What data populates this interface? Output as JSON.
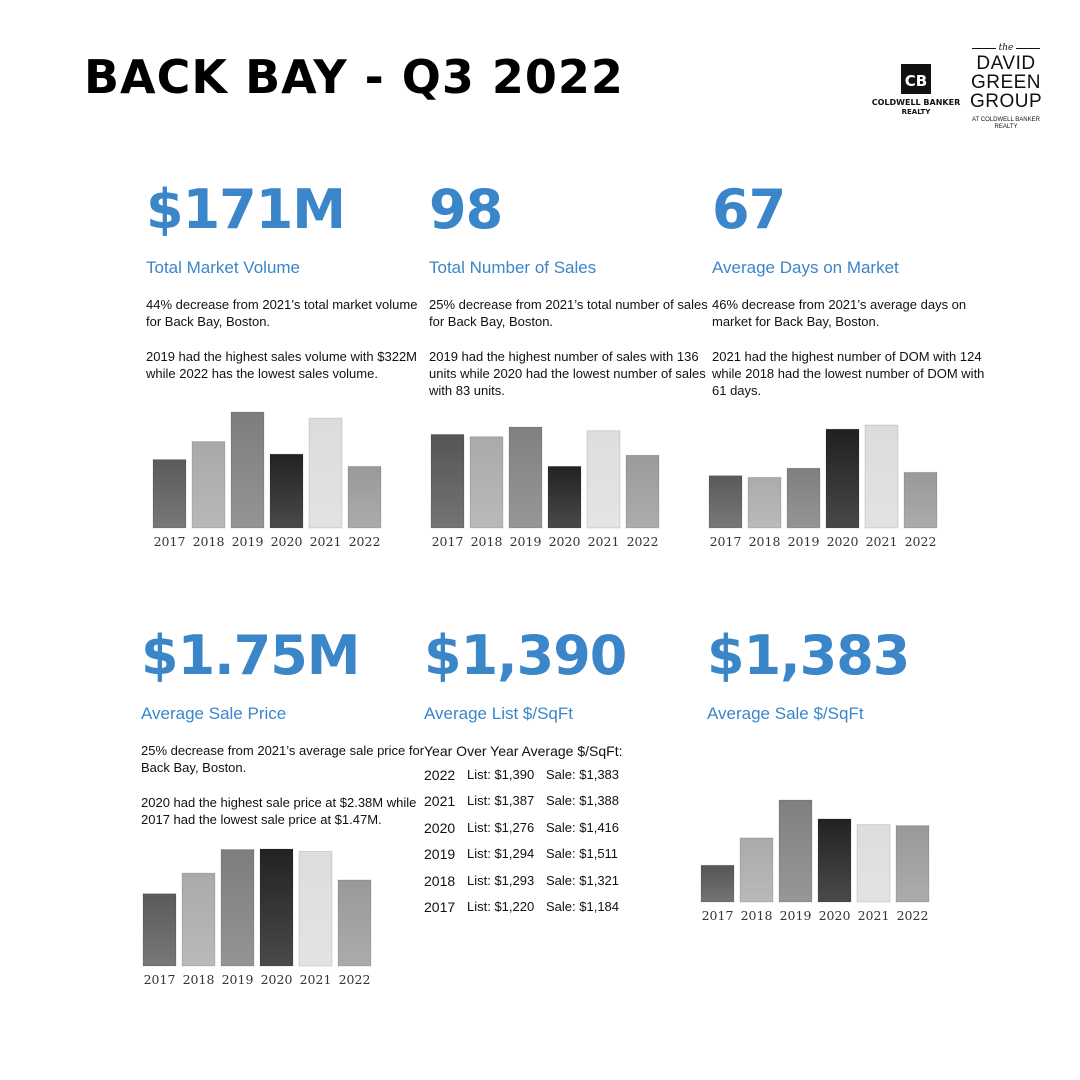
{
  "header": {
    "title": "BACK BAY - Q3 2022",
    "cb_logo": {
      "mark": "CB",
      "name": "COLDWELL BANKER",
      "sub": "REALTY"
    },
    "dg_logo": {
      "the": "the",
      "line1": "DAVID",
      "line2": "GREEN",
      "line3": "GROUP",
      "at1": "AT COLDWELL BANKER",
      "at2": "REALTY"
    }
  },
  "colors": {
    "accent": "#3a86c8",
    "text": "#111111"
  },
  "stats": {
    "volume": {
      "value": "$171M",
      "label": "Total Market Volume",
      "desc1": "44% decrease from 2021’s total market volume for Back Bay, Boston.",
      "desc2": "2019 had the highest sales volume with $322M while 2022 has the lowest sales volume."
    },
    "sales": {
      "value": "98",
      "label": "Total Number of Sales",
      "desc1": "25% decrease from 2021’s total number of sales for Back Bay, Boston.",
      "desc2": "2019 had the highest number of sales with 136 units while 2020 had the lowest number of sales with 83 units."
    },
    "dom": {
      "value": "67",
      "label": "Average Days on Market",
      "desc1": "46% decrease from 2021’s average days on market for Back Bay, Boston.",
      "desc2": "2021 had the highest number of DOM with 124 while 2018 had the lowest number of DOM with 61 days."
    },
    "price": {
      "value": "$1.75M",
      "label": "Average Sale Price",
      "desc1": "25% decrease from 2021’s average sale price for Back Bay, Boston.",
      "desc2": "2020 had the highest sale price at $2.38M while 2017 had the lowest sale price at $1.47M."
    },
    "list_sqft": {
      "value": "$1,390",
      "label": "Average List $/SqFt"
    },
    "sale_sqft": {
      "value": "$1,383",
      "label": "Average Sale $/SqFt"
    }
  },
  "yoy": {
    "title": "Year Over Year Average $/SqFt:",
    "rows": [
      {
        "year": "2022",
        "list": "List: $1,390",
        "sale": "Sale: $1,383"
      },
      {
        "year": "2021",
        "list": "List: $1,387",
        "sale": "Sale: $1,388"
      },
      {
        "year": "2020",
        "list": "List: $1,276",
        "sale": "Sale: $1,416"
      },
      {
        "year": "2019",
        "list": "List: $1,294",
        "sale": "Sale: $1,511"
      },
      {
        "year": "2018",
        "list": "List: $1,293",
        "sale": "Sale: $1,321"
      },
      {
        "year": "2017",
        "list": "List: $1,220",
        "sale": "Sale: $1,184"
      }
    ]
  },
  "chart_data": [
    {
      "type": "bar",
      "categories": [
        "2017",
        "2018",
        "2019",
        "2020",
        "2021",
        "2022"
      ],
      "values": [
        190,
        240,
        322,
        205,
        305,
        171
      ],
      "ylim": [
        0,
        322
      ],
      "bar_colors": [
        "#5a5a5a",
        "#a9a9a9",
        "#7d7d7d",
        "#222222",
        "#dcdcdc",
        "#999999"
      ]
    },
    {
      "type": "bar",
      "categories": [
        "2017",
        "2018",
        "2019",
        "2020",
        "2021",
        "2022"
      ],
      "values": [
        126,
        123,
        136,
        83,
        131,
        98
      ],
      "ylim": [
        0,
        136
      ],
      "bar_colors": [
        "#555555",
        "#aaaaaa",
        "#808080",
        "#222222",
        "#dedede",
        "#9a9a9a"
      ]
    },
    {
      "type": "bar",
      "categories": [
        "2017",
        "2018",
        "2019",
        "2020",
        "2021",
        "2022"
      ],
      "values": [
        63,
        61,
        72,
        119,
        124,
        67
      ],
      "ylim": [
        0,
        124
      ],
      "bar_colors": [
        "#5a5a5a",
        "#ababab",
        "#7e7e7e",
        "#202020",
        "#dcdcdc",
        "#999999"
      ]
    },
    {
      "type": "bar",
      "categories": [
        "2017",
        "2018",
        "2019",
        "2020",
        "2021",
        "2022"
      ],
      "values": [
        1.47,
        1.89,
        2.37,
        2.38,
        2.33,
        1.75
      ],
      "ylim": [
        0,
        2.38
      ],
      "bar_colors": [
        "#5a5a5a",
        "#aaaaaa",
        "#7d7d7d",
        "#222222",
        "#dddddd",
        "#999999"
      ]
    },
    {
      "type": "bar",
      "categories": [
        "2017",
        "2018",
        "2019",
        "2020",
        "2021",
        "2022"
      ],
      "values": [
        1184,
        1321,
        1511,
        1416,
        1388,
        1383
      ],
      "ylim": [
        1000,
        1511
      ],
      "bar_colors": [
        "#555555",
        "#aaaaaa",
        "#808080",
        "#222222",
        "#dddddd",
        "#999999"
      ]
    }
  ]
}
